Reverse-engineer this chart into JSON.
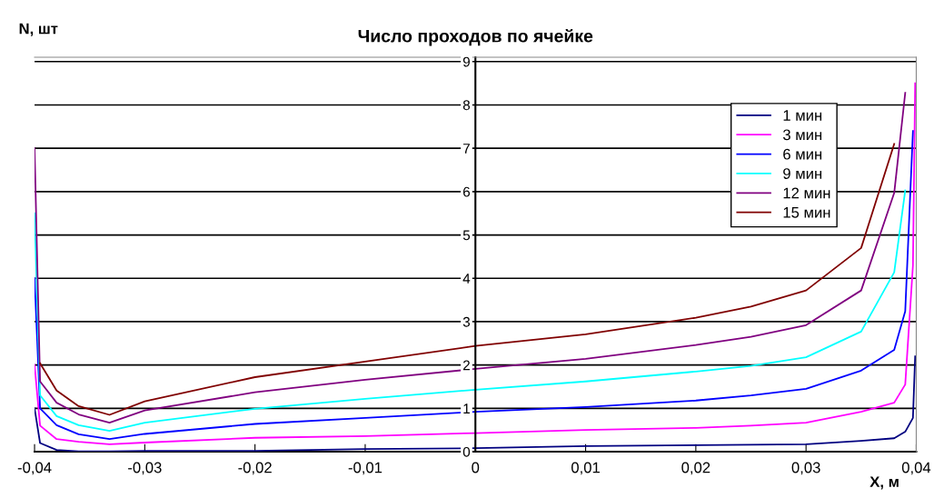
{
  "chart_data": {
    "type": "line",
    "title": "Число проходов по ячейке",
    "xlabel": "X, м",
    "ylabel": "N, шт",
    "x": [
      -0.04,
      -0.0395,
      -0.038,
      -0.036,
      -0.0332,
      -0.03,
      -0.02,
      -0.01,
      0,
      0.01,
      0.02,
      0.025,
      0.03,
      0.035,
      0.038,
      0.039,
      0.0397,
      0.0399
    ],
    "series": [
      {
        "name": "1 мин",
        "color": "#000080",
        "values": [
          1.0,
          0.2,
          0.04,
          0.01,
          0.01,
          0.02,
          0.02,
          0.06,
          0.08,
          0.13,
          0.15,
          0.16,
          0.17,
          0.25,
          0.31,
          0.46,
          0.78,
          2.2
        ]
      },
      {
        "name": "3 мин",
        "color": "#ff00ff",
        "values": [
          2.0,
          0.6,
          0.29,
          0.23,
          0.17,
          0.21,
          0.32,
          0.36,
          0.43,
          0.5,
          0.55,
          0.6,
          0.67,
          0.92,
          1.13,
          1.55,
          4.3,
          8.5
        ]
      },
      {
        "name": "6 мин",
        "color": "#0000ff",
        "values": [
          4.0,
          1.0,
          0.61,
          0.4,
          0.29,
          0.41,
          0.64,
          0.78,
          0.92,
          1.03,
          1.18,
          1.3,
          1.45,
          1.87,
          2.35,
          3.24,
          7.4,
          null
        ]
      },
      {
        "name": "9 мин",
        "color": "#00ffff",
        "values": [
          5.5,
          1.3,
          0.82,
          0.61,
          0.48,
          0.67,
          0.99,
          1.22,
          1.43,
          1.62,
          1.85,
          1.98,
          2.18,
          2.77,
          4.14,
          6.03,
          null,
          null
        ]
      },
      {
        "name": "12 мин",
        "color": "#800080",
        "values": [
          7.0,
          1.62,
          1.13,
          0.86,
          0.67,
          0.95,
          1.37,
          1.66,
          1.91,
          2.14,
          2.46,
          2.65,
          2.92,
          3.72,
          5.97,
          8.28,
          null,
          null
        ]
      },
      {
        "name": "15 мин",
        "color": "#800000",
        "values": [
          null,
          2.04,
          1.41,
          1.05,
          0.85,
          1.16,
          1.72,
          2.08,
          2.44,
          2.71,
          3.09,
          3.35,
          3.72,
          4.7,
          7.1,
          null,
          null,
          null
        ]
      }
    ],
    "xlim": [
      -0.04,
      0.04
    ],
    "xticks": [
      {
        "value": -0.04,
        "label": "-0,04"
      },
      {
        "value": -0.03,
        "label": "-0,03"
      },
      {
        "value": -0.02,
        "label": "-0,02"
      },
      {
        "value": -0.01,
        "label": "-0,01"
      },
      0,
      {
        "value": 0.01,
        "label": "0,01"
      },
      {
        "value": 0.02,
        "label": "0,02"
      },
      {
        "value": 0.03,
        "label": "0,03"
      },
      {
        "value": 0.04,
        "label": "0,04"
      }
    ],
    "ylim": [
      0,
      9.1
    ],
    "yticks": [
      0,
      1,
      2,
      3,
      4,
      5,
      6,
      7,
      8,
      9
    ],
    "grid": "y",
    "legend": "top right",
    "marker": "none",
    "line_style": "solid"
  }
}
